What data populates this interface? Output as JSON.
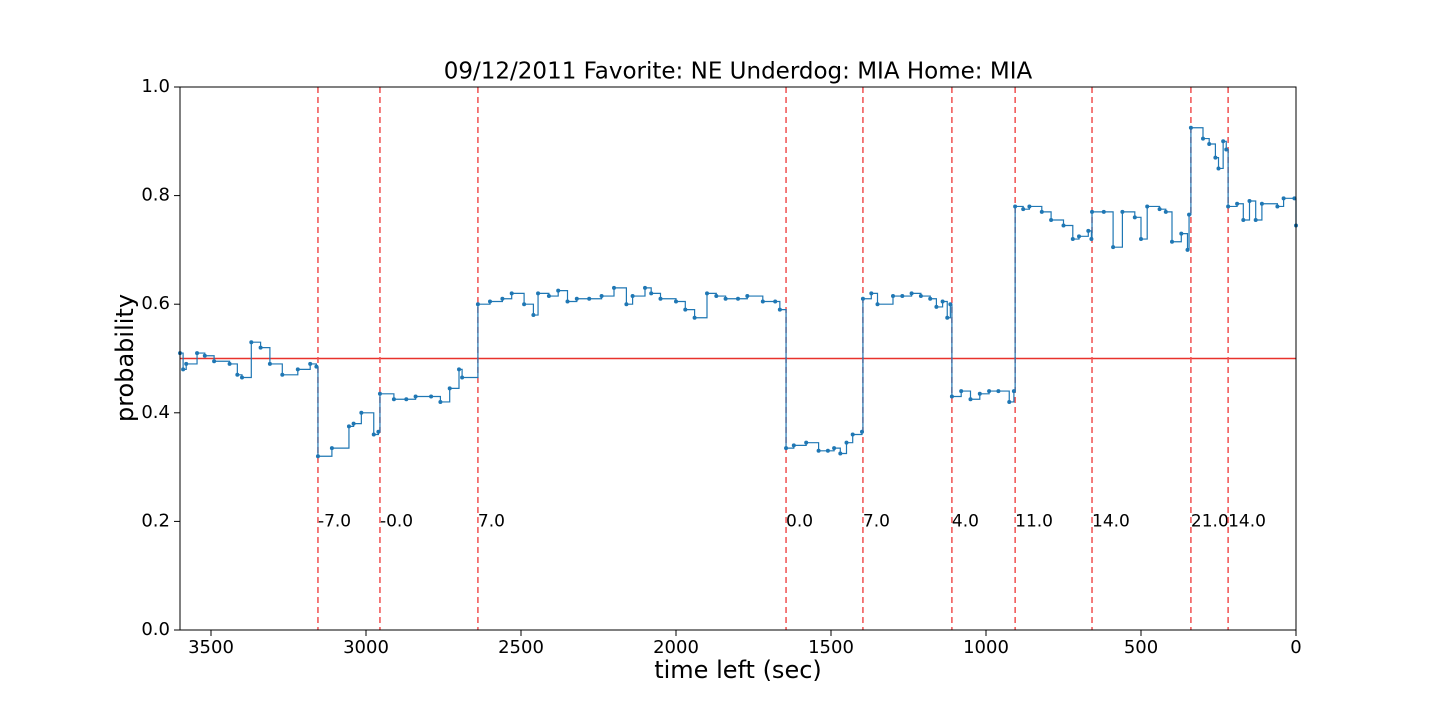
{
  "chart_data": {
    "type": "line",
    "title": "09/12/2011 Favorite: NE Underdog: MIA Home: MIA",
    "x_label": "time left (sec)",
    "y_label": "probability",
    "xlim": [
      3600,
      0
    ],
    "ylim": [
      0,
      1
    ],
    "xticks": [
      3500,
      3000,
      2500,
      2000,
      1500,
      1000,
      500,
      0
    ],
    "yticks": [
      {
        "value": 0,
        "label": "0.0"
      },
      0.2,
      0.4,
      0.6,
      0.8,
      {
        "value": 1,
        "label": "1.0"
      }
    ],
    "reference_y": 0.5,
    "reference_color": "#e8322c",
    "event_color": "#f05050",
    "event_label_y": 0.2,
    "events": [
      {
        "x": 3155,
        "label": "-7.0"
      },
      {
        "x": 2955,
        "label": "-0.0"
      },
      {
        "x": 2639,
        "label": "7.0"
      },
      {
        "x": 1645,
        "label": "0.0"
      },
      {
        "x": 1397,
        "label": "7.0"
      },
      {
        "x": 1110,
        "label": "4.0"
      },
      {
        "x": 906,
        "label": "11.0"
      },
      {
        "x": 658,
        "label": "14.0"
      },
      {
        "x": 339,
        "label": "21.0"
      },
      {
        "x": 219,
        "label": "14.0"
      }
    ],
    "series": [
      {
        "color": "#1f77b4",
        "x": [
          3600,
          3590,
          3580,
          3545,
          3520,
          3490,
          3440,
          3415,
          3400,
          3370,
          3340,
          3310,
          3270,
          3220,
          3180,
          3160,
          3155,
          3110,
          3055,
          3040,
          3015,
          2975,
          2960,
          2955,
          2910,
          2870,
          2840,
          2790,
          2760,
          2730,
          2700,
          2690,
          2639,
          2600,
          2560,
          2530,
          2490,
          2460,
          2445,
          2410,
          2380,
          2350,
          2320,
          2280,
          2240,
          2200,
          2160,
          2140,
          2100,
          2080,
          2050,
          2000,
          1970,
          1940,
          1900,
          1870,
          1840,
          1800,
          1770,
          1720,
          1680,
          1665,
          1645,
          1620,
          1580,
          1540,
          1510,
          1490,
          1470,
          1450,
          1430,
          1400,
          1397,
          1370,
          1350,
          1300,
          1270,
          1240,
          1210,
          1180,
          1160,
          1140,
          1125,
          1115,
          1110,
          1080,
          1050,
          1020,
          990,
          960,
          925,
          910,
          906,
          880,
          860,
          820,
          790,
          750,
          720,
          700,
          670,
          660,
          658,
          620,
          590,
          560,
          520,
          500,
          480,
          440,
          420,
          400,
          370,
          350,
          345,
          339,
          300,
          280,
          260,
          250,
          235,
          225,
          219,
          190,
          170,
          150,
          130,
          110,
          60,
          40,
          5,
          0
        ],
        "values": [
          0.51,
          0.48,
          0.49,
          0.51,
          0.505,
          0.495,
          0.49,
          0.47,
          0.465,
          0.53,
          0.52,
          0.49,
          0.47,
          0.48,
          0.49,
          0.485,
          0.32,
          0.335,
          0.375,
          0.38,
          0.4,
          0.36,
          0.365,
          0.435,
          0.425,
          0.425,
          0.43,
          0.43,
          0.42,
          0.445,
          0.48,
          0.465,
          0.6,
          0.605,
          0.61,
          0.62,
          0.6,
          0.58,
          0.62,
          0.615,
          0.625,
          0.605,
          0.61,
          0.61,
          0.615,
          0.63,
          0.6,
          0.615,
          0.63,
          0.62,
          0.61,
          0.605,
          0.59,
          0.575,
          0.62,
          0.615,
          0.61,
          0.61,
          0.615,
          0.605,
          0.605,
          0.59,
          0.335,
          0.34,
          0.345,
          0.33,
          0.33,
          0.335,
          0.325,
          0.345,
          0.36,
          0.365,
          0.61,
          0.62,
          0.6,
          0.615,
          0.615,
          0.62,
          0.615,
          0.61,
          0.595,
          0.605,
          0.575,
          0.6,
          0.43,
          0.44,
          0.425,
          0.435,
          0.44,
          0.44,
          0.42,
          0.44,
          0.78,
          0.775,
          0.78,
          0.77,
          0.755,
          0.745,
          0.72,
          0.725,
          0.735,
          0.72,
          0.77,
          0.77,
          0.705,
          0.77,
          0.76,
          0.72,
          0.78,
          0.775,
          0.77,
          0.715,
          0.73,
          0.7,
          0.765,
          0.925,
          0.905,
          0.895,
          0.87,
          0.85,
          0.9,
          0.885,
          0.78,
          0.785,
          0.755,
          0.79,
          0.755,
          0.785,
          0.78,
          0.795,
          0.795,
          0.745
        ]
      }
    ]
  }
}
